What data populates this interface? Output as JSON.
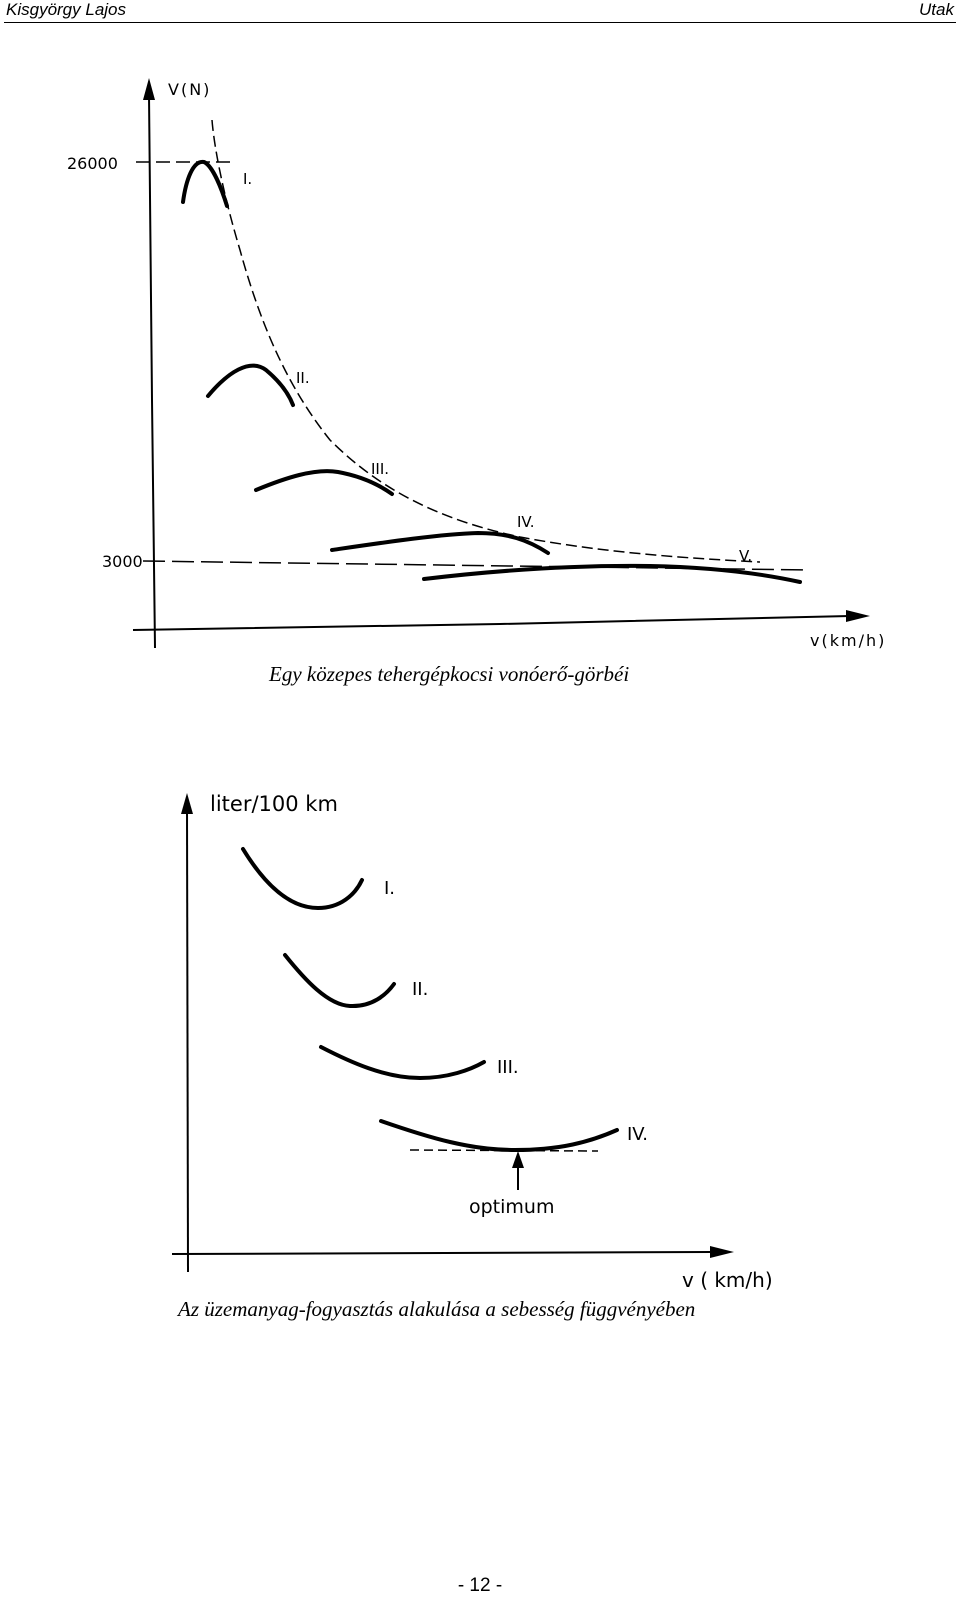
{
  "header": {
    "author": "Kisgyörgy Lajos",
    "title": "Utak"
  },
  "figure1": {
    "y_axis_label": "V(N)",
    "x_axis_label": "v(km/h)",
    "tick_high": "26000",
    "tick_low": "3000",
    "curve_labels": [
      "I.",
      "II.",
      "III.",
      "IV.",
      "V."
    ],
    "caption": "Egy közepes tehergépkocsi vonóerő-görbéi"
  },
  "figure2": {
    "y_axis_label": "liter/100 km",
    "x_axis_label": "v ( km/h)",
    "curve_labels": [
      "I.",
      "II.",
      "III.",
      "IV."
    ],
    "optimum_label": "optimum",
    "caption": "Az üzemanyag-fogyasztás alakulása a sebesség függvényében"
  },
  "footer": {
    "page_number": "- 12 -"
  }
}
